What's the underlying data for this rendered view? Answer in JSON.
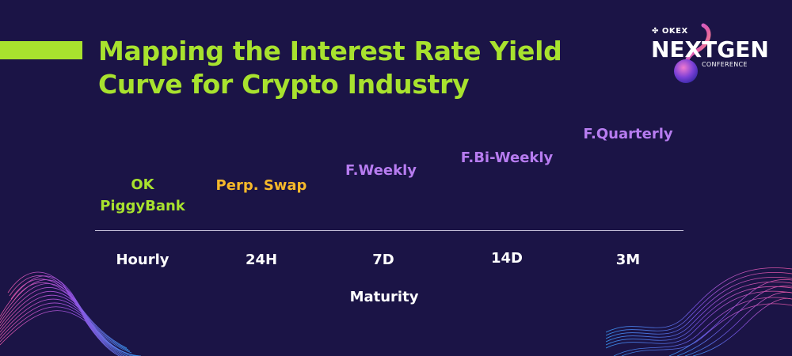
{
  "title": {
    "line1": "Mapping the Interest Rate Yield",
    "line2": "Curve for Crypto Industry"
  },
  "logo": {
    "brand": "OKEX",
    "name": "NEXTGEN",
    "subtitle": "CONFERENCE"
  },
  "products": [
    {
      "line1": "OK",
      "line2": "PiggyBank",
      "color": "#a8e22e"
    },
    {
      "line1": "Perp. Swap",
      "line2": "",
      "color": "#f5b82a"
    },
    {
      "line1": "F.Weekly",
      "line2": "",
      "color": "#b77cf0"
    },
    {
      "line1": "F.Bi-Weekly",
      "line2": "",
      "color": "#b77cf0"
    },
    {
      "line1": "F.Quarterly",
      "line2": "",
      "color": "#b77cf0"
    }
  ],
  "axis": {
    "title": "Maturity",
    "ticks": [
      "Hourly",
      "24H",
      "7D",
      "14D",
      "3M"
    ]
  },
  "colors": {
    "background": "#1b1446",
    "accent_green": "#a8e22e",
    "perp_orange": "#f5b82a",
    "futures_purple": "#b77cf0"
  }
}
